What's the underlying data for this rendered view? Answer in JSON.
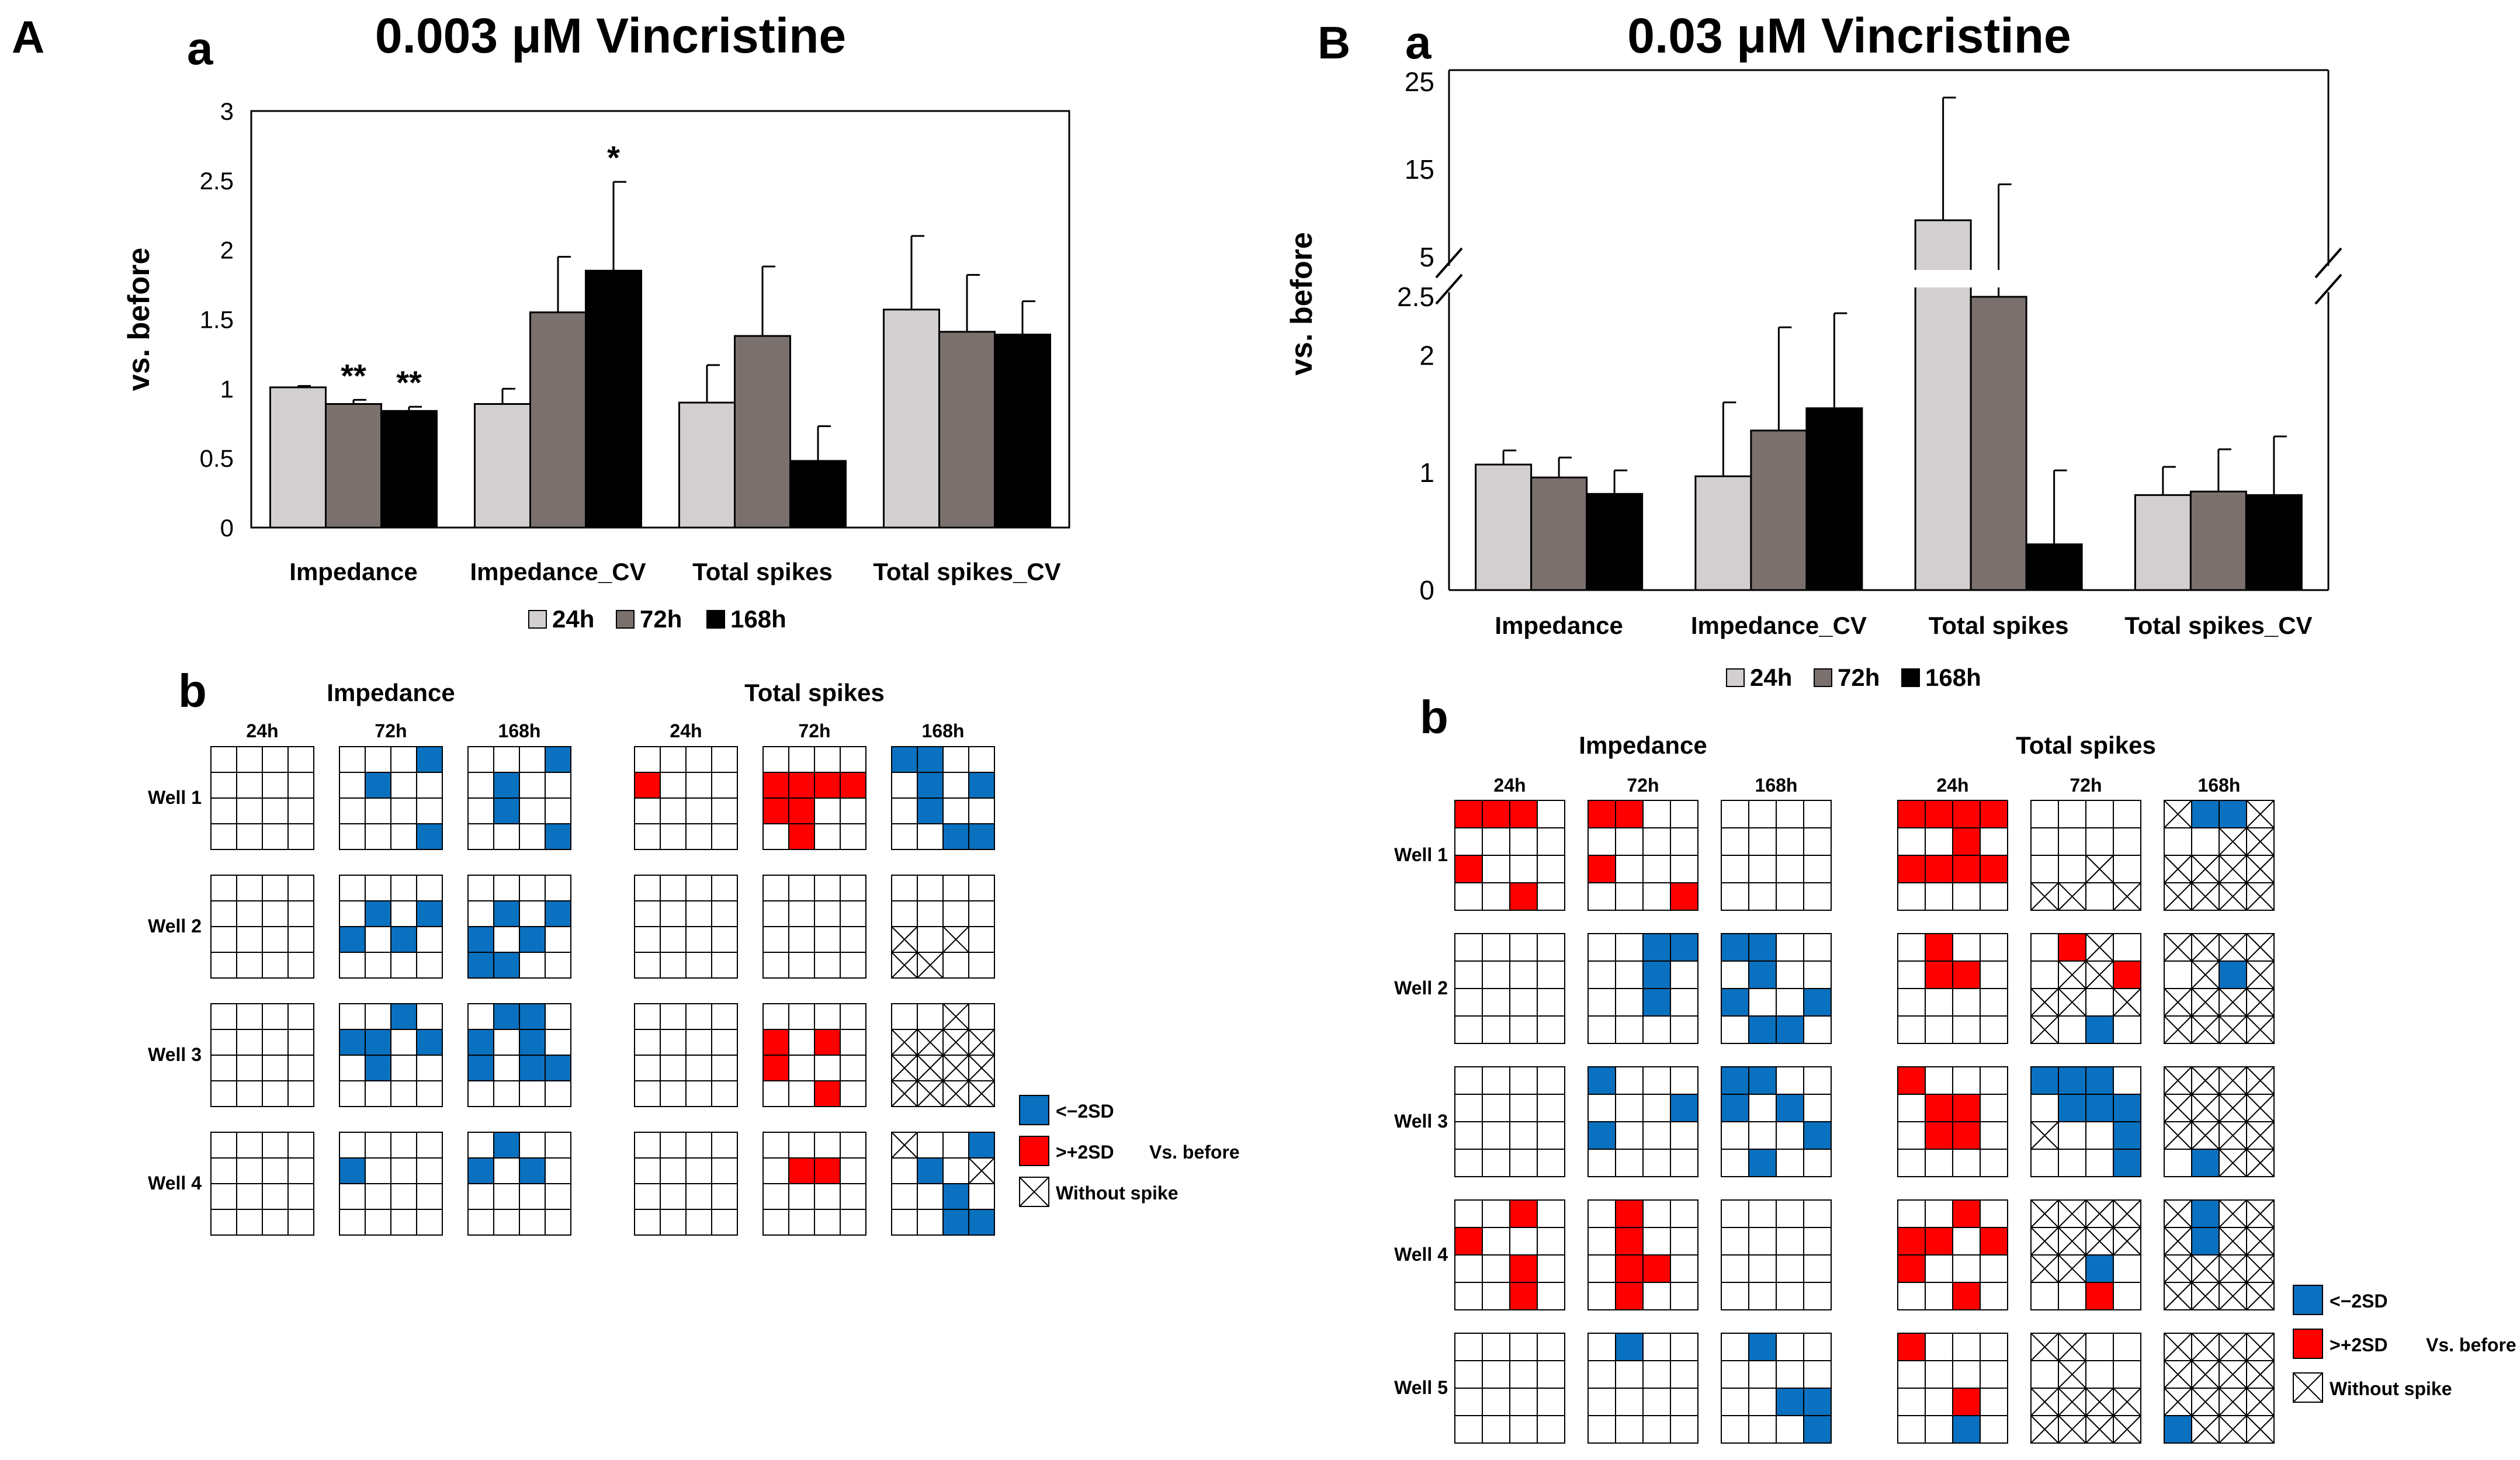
{
  "panels": {
    "A": {
      "letter": "A",
      "sub_a": "a",
      "sub_b": "b",
      "title": "0.003 μM Vincristine",
      "legend_series": [
        "24h",
        "72h",
        "168h"
      ],
      "grid_legend": {
        "low": "<−2SD",
        "high": ">+2SD",
        "vs": "Vs. before",
        "none": "Without spike"
      }
    },
    "B": {
      "letter": "B",
      "sub_a": "a",
      "sub_b": "b",
      "title": "0.03 μM Vincristine",
      "legend_series": [
        "24h",
        "72h",
        "168h"
      ],
      "grid_legend": {
        "low": "<−2SD",
        "high": ">+2SD",
        "vs": "Vs. before",
        "none": "Without spike"
      }
    }
  },
  "chart_data": [
    {
      "id": "A-a",
      "type": "bar",
      "title": "0.003 μM Vincristine",
      "ylabel": "vs. before",
      "xlabel": "",
      "ylim": [
        0,
        3
      ],
      "yticks": [
        "0",
        "0.5",
        "1",
        "1.5",
        "2",
        "2.5",
        "3"
      ],
      "categories": [
        "Impedance",
        "Impedance_CV",
        "Total spikes",
        "Total spikes_CV"
      ],
      "series": [
        {
          "name": "24h",
          "color": "#d3cfd0",
          "values": [
            1.01,
            0.89,
            0.9,
            1.57
          ],
          "errors": [
            0.01,
            0.11,
            0.27,
            0.53
          ]
        },
        {
          "name": "72h",
          "color": "#7a716e",
          "values": [
            0.89,
            1.55,
            1.38,
            1.41
          ],
          "errors": [
            0.03,
            0.4,
            0.5,
            0.41
          ]
        },
        {
          "name": "168h",
          "color": "#000000",
          "values": [
            0.84,
            1.85,
            0.48,
            1.39
          ],
          "errors": [
            0.03,
            0.64,
            0.25,
            0.24
          ]
        }
      ],
      "annotations": [
        {
          "category": 0,
          "series": 1,
          "text": "**"
        },
        {
          "category": 0,
          "series": 2,
          "text": "**"
        },
        {
          "category": 1,
          "series": 2,
          "text": "*"
        }
      ]
    },
    {
      "id": "B-a",
      "type": "bar",
      "title": "0.03 μM Vincristine",
      "ylabel": "vs. before",
      "xlabel": "",
      "axis_break": {
        "below": 2.5,
        "above": 5
      },
      "ylim_lower": [
        0,
        2.5
      ],
      "ylim_upper": [
        5,
        25
      ],
      "yticks": [
        "0",
        "1",
        "2",
        "2.5",
        "5",
        "15",
        "25"
      ],
      "categories": [
        "Impedance",
        "Impedance_CV",
        "Total spikes",
        "Total spikes_CV"
      ],
      "series": [
        {
          "name": "24h",
          "color": "#d3cfd0",
          "values": [
            1.07,
            0.97,
            9.2,
            0.81
          ],
          "errors": [
            0.12,
            0.63,
            14.0,
            0.24
          ]
        },
        {
          "name": "72h",
          "color": "#7a716e",
          "values": [
            0.96,
            1.36,
            4.8,
            0.84
          ],
          "errors": [
            0.17,
            0.88,
            8.5,
            0.36
          ]
        },
        {
          "name": "168h",
          "color": "#000000",
          "values": [
            0.82,
            1.55,
            0.39,
            0.81
          ],
          "errors": [
            0.2,
            0.81,
            0.63,
            0.5
          ]
        }
      ]
    },
    {
      "id": "A-b",
      "type": "heatmap",
      "description_labels": {
        "low": "<−2SD",
        "high": ">+2SD",
        "none": "Without spike"
      },
      "groups": [
        {
          "label": "Impedance",
          "times": [
            "24h",
            "72h",
            "168h"
          ]
        },
        {
          "label": "Total spikes",
          "times": [
            "24h",
            "72h",
            "168h"
          ]
        }
      ],
      "wells": [
        "Well 1",
        "Well 2",
        "Well 3",
        "Well 4"
      ],
      "grids": [
        [
          [
            "................",
            "...b.b.........b",
            "...b.b...b.....b",
            "....r...........",
            "....rrrrrr...r..",
            "bb...b.b.b....bb"
          ],
          [
            "................",
            ".....b.bb.b.....",
            ".....b.bb.b.bb..",
            "................",
            "................",
            "........x.x.xx.."
          ],
          [
            "................",
            "..b.bb.b.b......",
            ".bb.b.b.b.bb....",
            "................",
            "....r.r.r.....r.",
            "..x.xxxxxxxxxxxx"
          ],
          [
            "................",
            "....b...........",
            ".b..b.b.........",
            "................",
            ".....rr.........",
            "x..b.b.x..b...bb"
          ]
        ]
      ],
      "note": "Grids encoded as 16-char strings (row-major 4x4): '.'=normal, 'b'=<−2SD (blue), 'r'=>+2SD (red), 'x'=without spike. Order per well: Impedance 24h,72h,168h, Total spikes 24h,72h,168h."
    },
    {
      "id": "B-b",
      "type": "heatmap",
      "description_labels": {
        "low": "<−2SD",
        "high": ">+2SD",
        "none": "Without spike"
      },
      "groups": [
        {
          "label": "Impedance",
          "times": [
            "24h",
            "72h",
            "168h"
          ]
        },
        {
          "label": "Total spikes",
          "times": [
            "24h",
            "72h",
            "168h"
          ]
        }
      ],
      "wells": [
        "Well 1",
        "Well 2",
        "Well 3",
        "Well 4",
        "Well 5"
      ],
      "grids": [
        [
          [
            "rrr.....r.....r.",
            "rr......r......r",
            "................",
            "rrrr..r.rrrr....",
            "..........x.xx.x",
            "xbbx..xxxxxxxxxx"
          ],
          [
            "................",
            "..bb..b...b.....",
            "bb...b..b..b.bb.",
            ".r...rr.........",
            ".rx..xxrxx.xx.b.",
            "xxxx.xbxxxxxxxxx"
          ],
          [
            "................",
            "b......bb.......",
            "bb..b.b....b.b..",
            "r....rr..rr.....",
            "bbb..bbbx..b...b",
            "xxxxxxxxxxxx.bxx"
          ],
          [
            "..r.r.....r...r.",
            ".r...r...rr..r..",
            "................",
            "..r.rr.rr.....r.",
            "xxxxxxxxxxb...r.",
            "xbxxxbxxxxxxxxxx"
          ],
          [
            "................",
            ".b..............",
            ".b........bb...b",
            "r.........r...b.",
            "xx...x..xxxxxxxx",
            "xxxxxxxxxxxxbxxx"
          ]
        ]
      ],
      "note": "Same encoding as A-b."
    }
  ]
}
